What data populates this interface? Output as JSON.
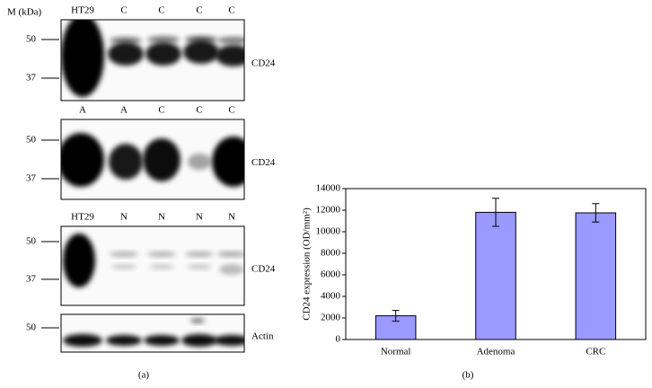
{
  "panel_a": {
    "mass_label": "M (kDa)",
    "caption": "(a)",
    "blots": [
      {
        "lanes": [
          "HT29",
          "C",
          "C",
          "C",
          "C"
        ],
        "markers": [
          "50",
          "37"
        ],
        "target": "CD24"
      },
      {
        "lanes": [
          "A",
          "A",
          "C",
          "C",
          "C"
        ],
        "markers": [
          "50",
          "37"
        ],
        "target": "CD24"
      },
      {
        "lanes": [
          "HT29",
          "N",
          "N",
          "N",
          "N"
        ],
        "markers": [
          "50",
          "37"
        ],
        "target": "CD24"
      },
      {
        "markers": [
          "50"
        ],
        "target": "Actin"
      }
    ]
  },
  "chart_data": {
    "type": "bar",
    "caption": "(b)",
    "ylabel": "CD24 expression (OD/mm²)",
    "categories": [
      "Normal",
      "Adenoma",
      "CRC"
    ],
    "values": [
      2200,
      11800,
      11750
    ],
    "errors": [
      500,
      1300,
      850
    ],
    "color": "#9999ff",
    "ylim": [
      0,
      14000
    ],
    "yticks": [
      0,
      2000,
      4000,
      6000,
      8000,
      10000,
      12000,
      14000
    ]
  }
}
